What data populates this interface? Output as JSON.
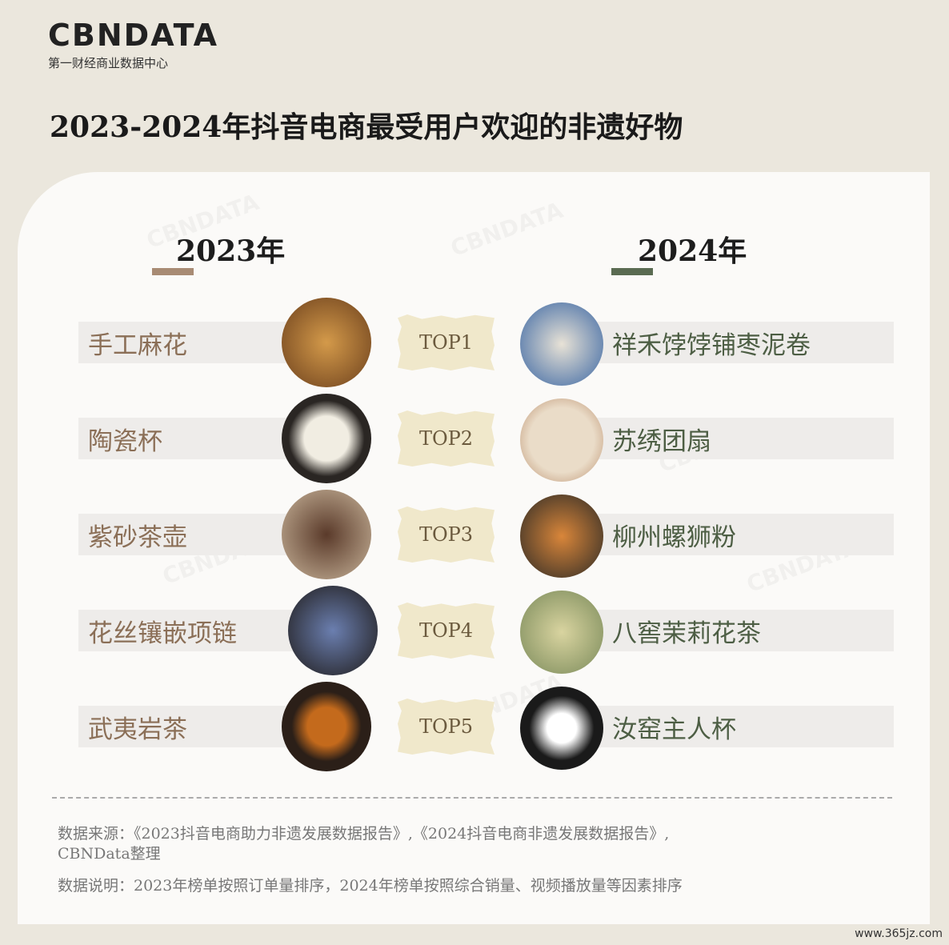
{
  "logo": {
    "brand": "CBNDATA",
    "subtitle": "第一财经商业数据中心"
  },
  "title": "2023-2024年抖音电商最受用户欢迎的非遗好物",
  "columns": [
    "2023年",
    "2024年"
  ],
  "rankings": [
    {
      "rank": "TOP1",
      "item_2023": "手工麻花",
      "item_2024": "祥禾饽饽铺枣泥卷"
    },
    {
      "rank": "TOP2",
      "item_2023": "陶瓷杯",
      "item_2024": "苏绣团扇"
    },
    {
      "rank": "TOP3",
      "item_2023": "紫砂茶壶",
      "item_2024": "柳州螺狮粉"
    },
    {
      "rank": "TOP4",
      "item_2023": "花丝镶嵌项链",
      "item_2024": "八窖茉莉花茶"
    },
    {
      "rank": "TOP5",
      "item_2023": "武夷岩茶",
      "item_2024": "汝窑主人杯"
    }
  ],
  "notes": {
    "source": "数据来源：《2023抖音电商助力非遗发展数据报告》,《2024抖音电商非遗发展数据报告》,",
    "source_cont": "CBNData整理",
    "explanation": "数据说明：2023年榜单按照订单量排序，2024年榜单按照综合销量、视频播放量等因素排序"
  },
  "watermark_site": "www.365jz.com"
}
